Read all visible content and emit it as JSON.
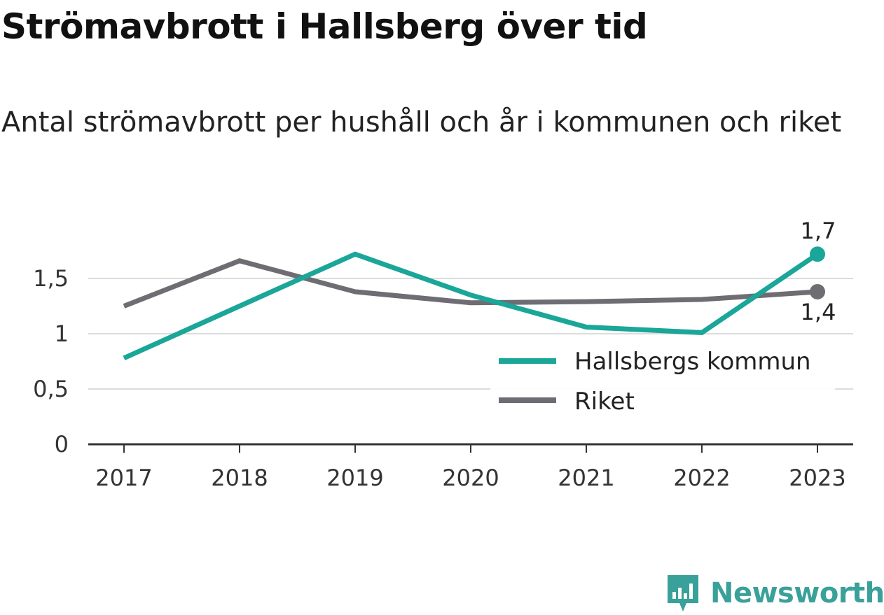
{
  "title": "Strömavbrott i Hallsberg över tid",
  "subtitle": "Antal strömavbrott per hushåll och år i kommunen och riket",
  "brand": {
    "name": "Newsworthy",
    "icon": "newsworthy-logo-icon",
    "color": "#3aa09a"
  },
  "chart_data": {
    "type": "line",
    "categories": [
      "2017",
      "2018",
      "2019",
      "2020",
      "2021",
      "2022",
      "2023"
    ],
    "y_ticks": [
      0,
      0.5,
      1,
      1.5
    ],
    "y_tick_labels": [
      "0",
      "0,5",
      "1",
      "1,5"
    ],
    "ylim": [
      0,
      1.7
    ],
    "grid": true,
    "legend_position": "right",
    "series": [
      {
        "name": "Hallsbergs kommun",
        "color": "#1aa698",
        "values": [
          0.78,
          1.25,
          1.72,
          1.35,
          1.06,
          1.01,
          1.72
        ],
        "end_label": "1,7"
      },
      {
        "name": "Riket",
        "color": "#6e6d73",
        "values": [
          1.25,
          1.66,
          1.38,
          1.28,
          1.29,
          1.31,
          1.38
        ],
        "end_label": "1,4"
      }
    ]
  }
}
